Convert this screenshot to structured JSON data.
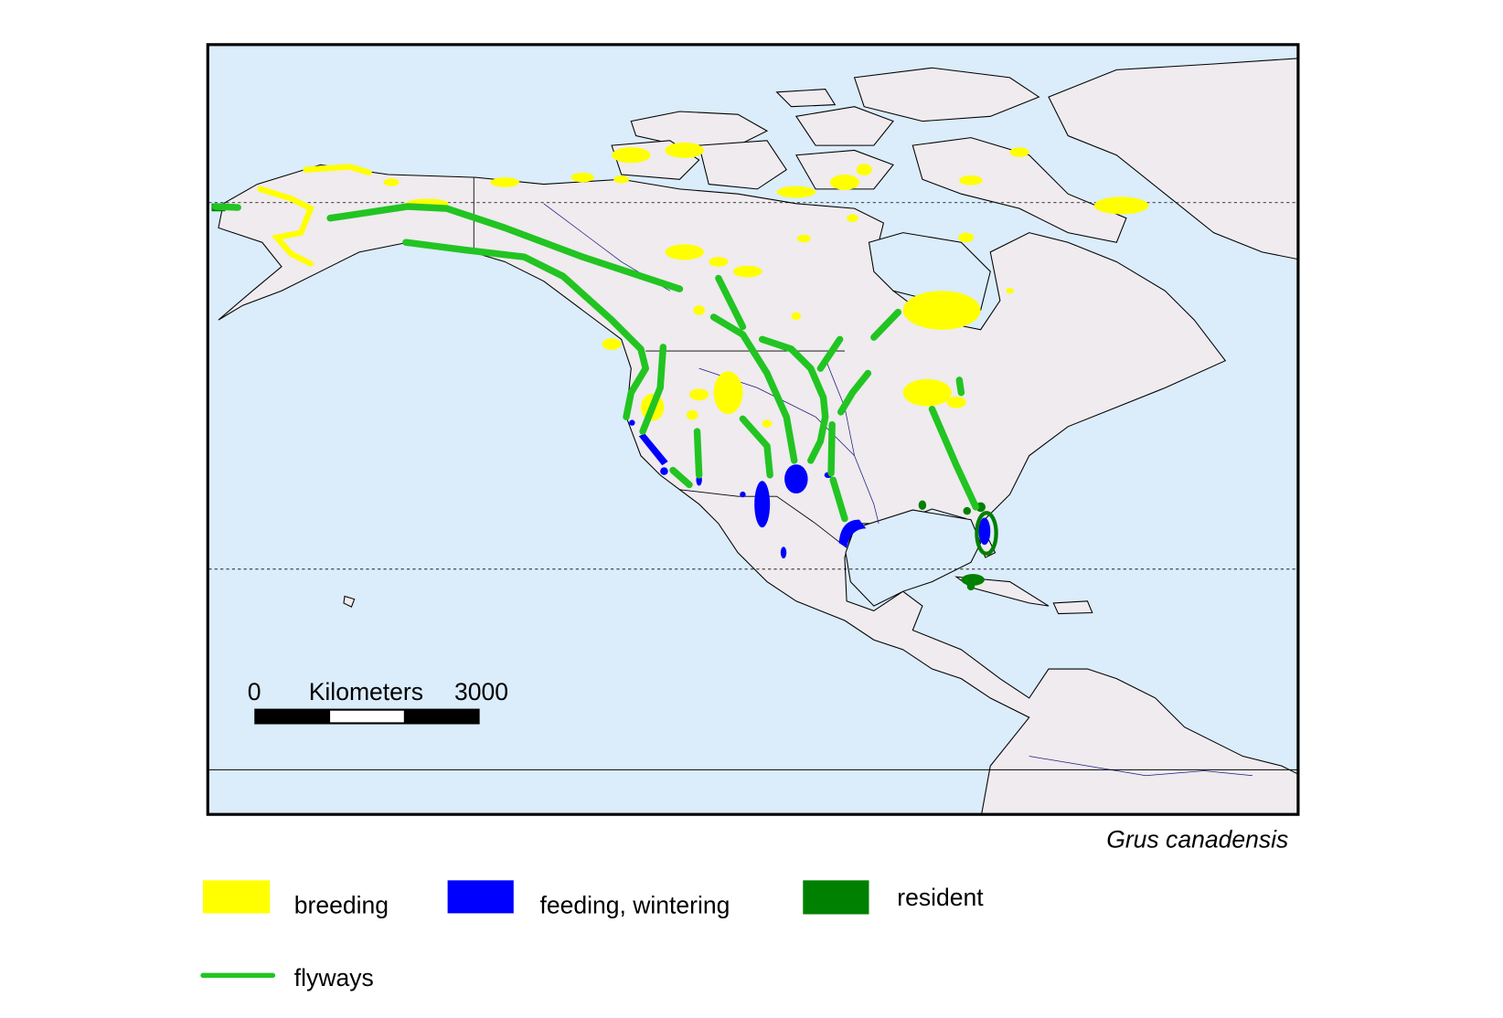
{
  "map": {
    "species_label": "Grus canadensis",
    "ocean_color": "#dbecfb",
    "land_color": "#efebee"
  },
  "scale_bar": {
    "start_label": "0",
    "unit_label": "Kilometers",
    "end_label": "3000"
  },
  "legend": {
    "items": [
      {
        "label": "breeding",
        "color": "#ffff00",
        "symbol": "box"
      },
      {
        "label": "feeding, wintering",
        "color": "#0000ff",
        "symbol": "box"
      },
      {
        "label": "resident",
        "color": "#008000",
        "symbol": "box"
      },
      {
        "label": "flyways",
        "color": "#22c422",
        "symbol": "line"
      }
    ]
  }
}
